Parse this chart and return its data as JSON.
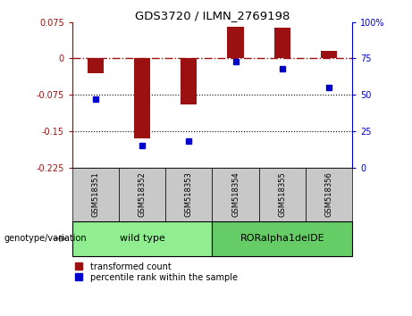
{
  "title": "GDS3720 / ILMN_2769198",
  "samples": [
    "GSM518351",
    "GSM518352",
    "GSM518353",
    "GSM518354",
    "GSM518355",
    "GSM518356"
  ],
  "bar_values": [
    -0.03,
    -0.165,
    -0.095,
    0.065,
    0.063,
    0.015
  ],
  "percentile_values": [
    47,
    15,
    18,
    73,
    68,
    55
  ],
  "ylim_left": [
    -0.225,
    0.075
  ],
  "ylim_right": [
    0,
    100
  ],
  "yticks_left": [
    0.075,
    0,
    -0.075,
    -0.15,
    -0.225
  ],
  "yticks_left_labels": [
    "0.075",
    "0",
    "-0.075",
    "-0.15",
    "-0.225"
  ],
  "yticks_right": [
    100,
    75,
    50,
    25,
    0
  ],
  "yticks_right_labels": [
    "100%",
    "75",
    "50",
    "25",
    "0"
  ],
  "bar_color": "#9B1010",
  "dot_color": "#0000CD",
  "wild_type_label": "wild type",
  "roralphe_label": "RORalpha1delDE",
  "genotype_label": "genotype/variation",
  "legend_red": "transformed count",
  "legend_blue": "percentile rank within the sample",
  "wild_type_color": "#90EE90",
  "roralphe_color": "#66CC66",
  "header_bg": "#C8C8C8",
  "bar_width": 0.35
}
